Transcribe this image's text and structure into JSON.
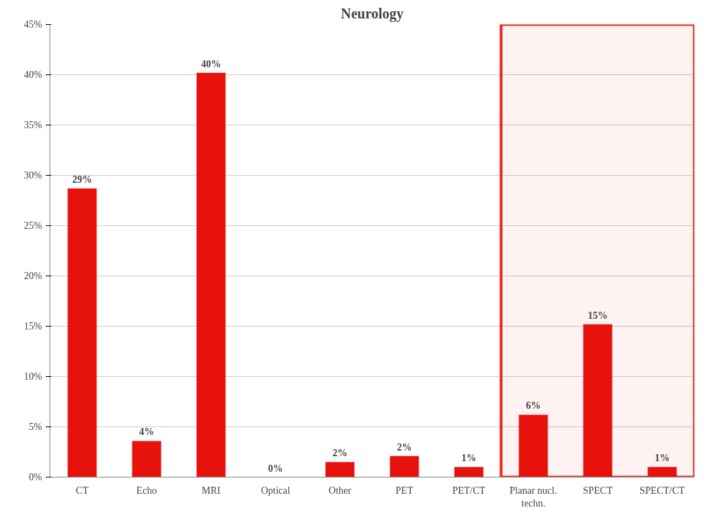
{
  "chart_data": {
    "type": "bar",
    "title": "Neurology",
    "categories": [
      "CT",
      "Echo",
      "MRI",
      "Optical",
      "Other",
      "PET",
      "PET/CT",
      "Planar nucl. techn.",
      "SPECT",
      "SPECT/CT"
    ],
    "values": [
      28.7,
      3.6,
      40.2,
      0,
      1.5,
      2.1,
      1.0,
      6.2,
      15.2,
      1.0
    ],
    "value_labels": [
      "29%",
      "4%",
      "40%",
      "0%",
      "2%",
      "2%",
      "1%",
      "6%",
      "15%",
      "1%"
    ],
    "color": "#e8120c",
    "ylim": [
      0,
      45
    ],
    "yticks": [
      {
        "value": 0,
        "label": "0%"
      },
      {
        "value": 5,
        "label": "5%"
      },
      {
        "value": 10,
        "label": "10%"
      },
      {
        "value": 15,
        "label": "15%"
      },
      {
        "value": 20,
        "label": "20%"
      },
      {
        "value": 25,
        "label": "25%"
      },
      {
        "value": 30,
        "label": "30%"
      },
      {
        "value": 35,
        "label": "35%"
      },
      {
        "value": 40,
        "label": "40%"
      },
      {
        "value": 45,
        "label": "45%"
      }
    ],
    "grid": "y",
    "bands": [
      {
        "axis": "x",
        "from": "Planar nucl. techn.",
        "to": "SPECT/CT",
        "color": "#ee2a1b"
      }
    ]
  }
}
